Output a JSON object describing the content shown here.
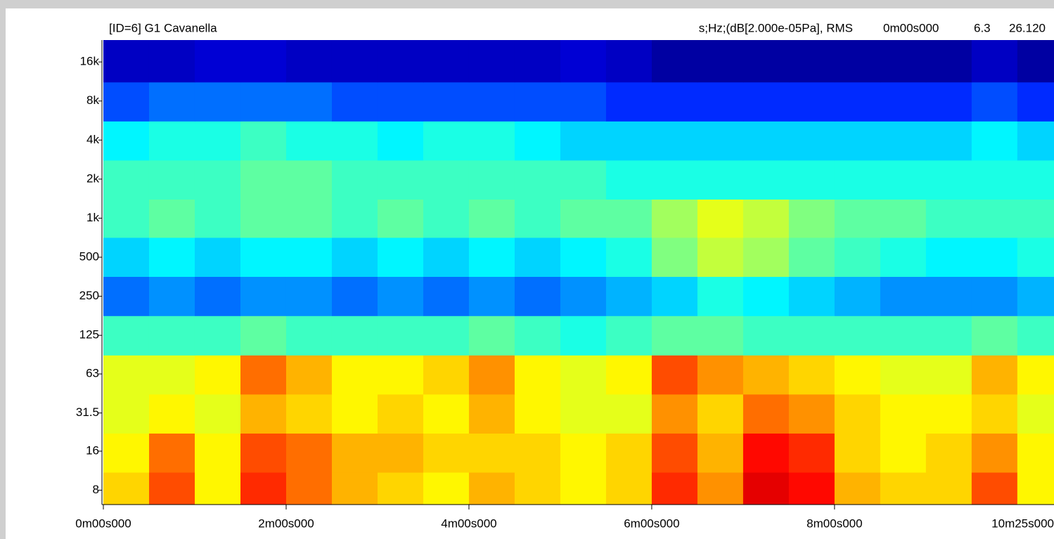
{
  "chart_data": {
    "type": "heatmap",
    "title": "[ID=6] G1 Cavanella",
    "units_label": "s;Hz;(dB[2.000e-05Pa], RMS",
    "cursor_time": "0m00s000",
    "cursor_frequency": "6.3",
    "cursor_level": "26.120",
    "cursor_color": "#6a9be8",
    "colormap": "jet",
    "clim": [
      10,
      70
    ],
    "log_y": true,
    "xlim": [
      0,
      625
    ],
    "ylim": [
      6.2,
      23600
    ],
    "xticks": [
      {
        "value": 0,
        "label": "0m00s000"
      },
      {
        "value": 120,
        "label": "2m00s000"
      },
      {
        "value": 240,
        "label": "4m00s000"
      },
      {
        "value": 360,
        "label": "6m00s000"
      },
      {
        "value": 480,
        "label": "8m00s000"
      },
      {
        "value": 625,
        "label": "10m25s000"
      }
    ],
    "yticks": [
      8,
      16,
      {
        "value": 31.5,
        "label": "31.5"
      },
      63,
      125,
      250,
      500,
      {
        "value": 1000,
        "label": "1k"
      },
      {
        "value": 2000,
        "label": "2k"
      },
      {
        "value": 4000,
        "label": "4k"
      },
      {
        "value": 8000,
        "label": "8k"
      },
      {
        "value": 16000,
        "label": "16k"
      }
    ],
    "x_edges": [
      0,
      30,
      60,
      90,
      120,
      150,
      180,
      210,
      240,
      270,
      300,
      330,
      360,
      390,
      420,
      450,
      480,
      510,
      540,
      570,
      600,
      625
    ],
    "y_edges": [
      6.2,
      11,
      22,
      44,
      88,
      177,
      355,
      710,
      1400,
      2800,
      5600,
      11200,
      23600
    ],
    "values": [
      [
        50,
        58,
        48,
        60,
        56,
        52,
        50,
        48,
        52,
        50,
        48,
        50,
        60,
        54,
        64,
        62,
        52,
        50,
        50,
        58,
        48
      ],
      [
        48,
        56,
        48,
        58,
        56,
        52,
        52,
        50,
        50,
        50,
        48,
        50,
        58,
        52,
        62,
        60,
        50,
        48,
        50,
        54,
        48
      ],
      [
        46,
        48,
        46,
        52,
        50,
        48,
        50,
        48,
        52,
        48,
        46,
        46,
        54,
        50,
        56,
        54,
        50,
        48,
        48,
        50,
        46
      ],
      [
        46,
        46,
        48,
        56,
        52,
        48,
        48,
        50,
        54,
        48,
        46,
        48,
        58,
        54,
        52,
        50,
        48,
        46,
        46,
        52,
        48
      ],
      [
        36,
        36,
        36,
        38,
        36,
        36,
        36,
        36,
        38,
        36,
        34,
        36,
        38,
        38,
        36,
        36,
        36,
        36,
        36,
        38,
        36
      ],
      [
        24,
        26,
        24,
        26,
        26,
        24,
        26,
        24,
        26,
        24,
        26,
        28,
        30,
        34,
        32,
        30,
        28,
        26,
        26,
        26,
        28
      ],
      [
        30,
        32,
        30,
        32,
        32,
        30,
        32,
        30,
        32,
        30,
        32,
        34,
        40,
        44,
        42,
        38,
        36,
        34,
        32,
        32,
        34
      ],
      [
        36,
        38,
        36,
        38,
        38,
        36,
        38,
        36,
        38,
        36,
        38,
        38,
        42,
        46,
        44,
        40,
        38,
        38,
        36,
        36,
        36
      ],
      [
        36,
        36,
        36,
        38,
        38,
        36,
        36,
        36,
        36,
        36,
        36,
        34,
        34,
        34,
        34,
        34,
        34,
        34,
        34,
        34,
        34
      ],
      [
        32,
        34,
        34,
        36,
        34,
        34,
        32,
        34,
        34,
        32,
        30,
        30,
        30,
        30,
        30,
        30,
        30,
        30,
        30,
        32,
        30
      ],
      [
        22,
        24,
        24,
        24,
        24,
        22,
        22,
        22,
        22,
        22,
        22,
        20,
        20,
        20,
        20,
        20,
        20,
        20,
        20,
        22,
        20
      ],
      [
        14,
        14,
        15,
        15,
        14,
        14,
        14,
        14,
        14,
        14,
        15,
        14,
        12,
        12,
        12,
        12,
        12,
        12,
        12,
        14,
        12
      ]
    ]
  }
}
